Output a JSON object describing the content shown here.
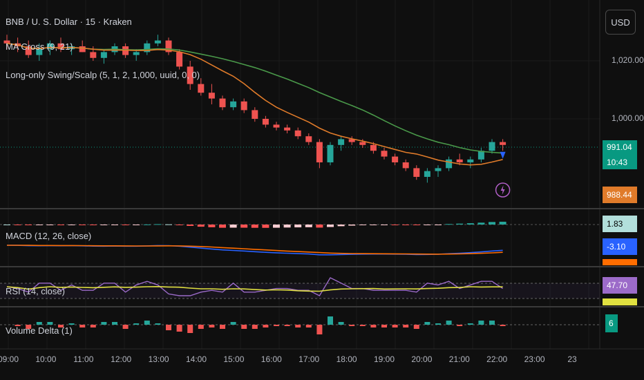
{
  "header": {
    "symbol_title": "BNB / U. S. Dollar · 15 · Kraken",
    "ma_cross": "MA Cross (9, 21)",
    "strategy": "Long-only Swing/Scalp (5, 1, 2, 1,000, uuid, 0, 0)"
  },
  "currency_button": "USD",
  "price_axis": {
    "labels": [
      "1,020.00",
      "1,000.00"
    ],
    "last_price": "991.04",
    "countdown": "10:43",
    "ma_price": "988.44"
  },
  "panes": {
    "macd_label": "MACD (12, 26, close)",
    "macd_hist": "1.83",
    "macd_line": "-3.10",
    "rsi_label": "RSI (14, close)",
    "rsi_value": "47.70",
    "volume_delta_label": "Volume Delta (1)",
    "volume_delta_value": "6"
  },
  "time_axis": [
    "09:00",
    "10:00",
    "11:00",
    "12:00",
    "13:00",
    "14:00",
    "15:00",
    "16:00",
    "17:00",
    "18:00",
    "19:00",
    "20:00",
    "21:00",
    "22:00",
    "23:00",
    "23"
  ],
  "colors": {
    "up": "#26a69a",
    "down": "#ef5350",
    "ma_fast": "#e07b2a",
    "ma_slow": "#4a9a4a",
    "macd": "#2962ff",
    "signal": "#ff6d00",
    "rsi": "#9c6bc9",
    "rsi_ma": "#e0e040"
  },
  "chart_data": {
    "type": "candlestick",
    "interval": "15",
    "candles": [
      {
        "o": 1027,
        "h": 1029,
        "l": 1024,
        "c": 1026
      },
      {
        "o": 1026,
        "h": 1028,
        "l": 1023,
        "c": 1025
      },
      {
        "o": 1025,
        "h": 1027,
        "l": 1021,
        "c": 1022
      },
      {
        "o": 1022,
        "h": 1026,
        "l": 1020,
        "c": 1024
      },
      {
        "o": 1024,
        "h": 1027,
        "l": 1022,
        "c": 1026
      },
      {
        "o": 1026,
        "h": 1028,
        "l": 1023,
        "c": 1024
      },
      {
        "o": 1024,
        "h": 1026,
        "l": 1022,
        "c": 1025
      },
      {
        "o": 1025,
        "h": 1027,
        "l": 1023,
        "c": 1023
      },
      {
        "o": 1023,
        "h": 1025,
        "l": 1020,
        "c": 1021
      },
      {
        "o": 1021,
        "h": 1024,
        "l": 1019,
        "c": 1023
      },
      {
        "o": 1023,
        "h": 1026,
        "l": 1022,
        "c": 1025
      },
      {
        "o": 1025,
        "h": 1026,
        "l": 1021,
        "c": 1022
      },
      {
        "o": 1022,
        "h": 1024,
        "l": 1020,
        "c": 1023
      },
      {
        "o": 1023,
        "h": 1027,
        "l": 1022,
        "c": 1026
      },
      {
        "o": 1026,
        "h": 1029,
        "l": 1025,
        "c": 1027
      },
      {
        "o": 1027,
        "h": 1028,
        "l": 1022,
        "c": 1023
      },
      {
        "o": 1023,
        "h": 1024,
        "l": 1017,
        "c": 1018
      },
      {
        "o": 1018,
        "h": 1020,
        "l": 1010,
        "c": 1012
      },
      {
        "o": 1012,
        "h": 1014,
        "l": 1008,
        "c": 1009
      },
      {
        "o": 1009,
        "h": 1012,
        "l": 1005,
        "c": 1007
      },
      {
        "o": 1007,
        "h": 1008,
        "l": 1003,
        "c": 1004
      },
      {
        "o": 1004,
        "h": 1007,
        "l": 1003,
        "c": 1006
      },
      {
        "o": 1006,
        "h": 1007,
        "l": 1002,
        "c": 1003
      },
      {
        "o": 1003,
        "h": 1004,
        "l": 999,
        "c": 1000
      },
      {
        "o": 1000,
        "h": 1001,
        "l": 997,
        "c": 998
      },
      {
        "o": 998,
        "h": 999,
        "l": 996,
        "c": 997
      },
      {
        "o": 997,
        "h": 998,
        "l": 995,
        "c": 996
      },
      {
        "o": 996,
        "h": 997,
        "l": 993,
        "c": 994
      },
      {
        "o": 994,
        "h": 995,
        "l": 991,
        "c": 992
      },
      {
        "o": 992,
        "h": 993,
        "l": 983,
        "c": 985
      },
      {
        "o": 985,
        "h": 992,
        "l": 984,
        "c": 991
      },
      {
        "o": 991,
        "h": 994,
        "l": 989,
        "c": 993
      },
      {
        "o": 993,
        "h": 994,
        "l": 991,
        "c": 992
      },
      {
        "o": 992,
        "h": 993,
        "l": 990,
        "c": 991
      },
      {
        "o": 991,
        "h": 992,
        "l": 988,
        "c": 989
      },
      {
        "o": 989,
        "h": 990,
        "l": 986,
        "c": 987
      },
      {
        "o": 987,
        "h": 988,
        "l": 984,
        "c": 985
      },
      {
        "o": 985,
        "h": 986,
        "l": 982,
        "c": 983
      },
      {
        "o": 983,
        "h": 984,
        "l": 979,
        "c": 980
      },
      {
        "o": 980,
        "h": 983,
        "l": 978,
        "c": 982
      },
      {
        "o": 982,
        "h": 984,
        "l": 980,
        "c": 983
      },
      {
        "o": 983,
        "h": 987,
        "l": 982,
        "c": 986
      },
      {
        "o": 986,
        "h": 988,
        "l": 984,
        "c": 985
      },
      {
        "o": 985,
        "h": 987,
        "l": 983,
        "c": 986
      },
      {
        "o": 986,
        "h": 990,
        "l": 985,
        "c": 989
      },
      {
        "o": 989,
        "h": 993,
        "l": 988,
        "c": 992
      },
      {
        "o": 992,
        "h": 993,
        "l": 989,
        "c": 991
      }
    ]
  }
}
